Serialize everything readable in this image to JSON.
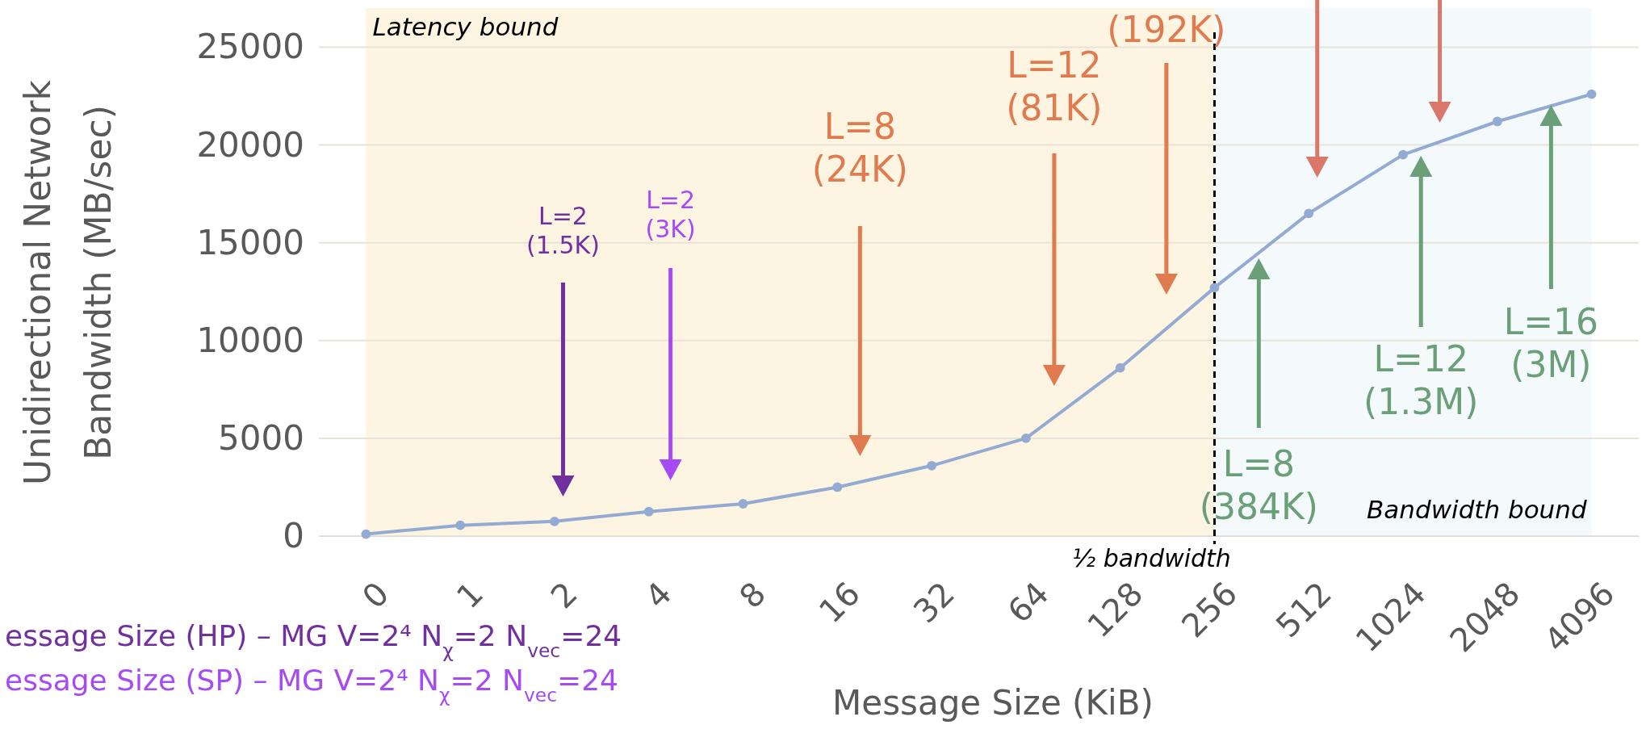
{
  "chart_data": {
    "type": "line",
    "xlabel": "Message Size (KiB)",
    "ylabel": "Unidirectional Network\nBandwidth (MB/sec)",
    "categories": [
      "0",
      "1",
      "2",
      "4",
      "8",
      "16",
      "32",
      "64",
      "128",
      "256",
      "512",
      "1024",
      "2048",
      "4096"
    ],
    "series": [
      {
        "color": "#93aad3",
        "values": [
          100,
          550,
          750,
          1250,
          1650,
          2500,
          3600,
          5000,
          8600,
          12700,
          16500,
          19500,
          21200,
          22600
        ]
      }
    ],
    "ylim": [
      0,
      27000
    ],
    "yticks": [
      0,
      5000,
      10000,
      15000,
      20000,
      25000
    ],
    "grid": "y",
    "marker": "circle",
    "line_style": "solid",
    "bands": [
      {
        "axis": "x",
        "from": "0",
        "to": "256",
        "label": "Latency bound",
        "color": "#fef4e2"
      },
      {
        "axis": "x",
        "from": "256",
        "to": "4096",
        "label": "Bandwidth bound",
        "color": "#f4f9fc"
      }
    ],
    "ref_lines": [
      {
        "axis": "x",
        "value": "256",
        "label": "½ bandwidth",
        "color": "#000000",
        "line_style": "dashed"
      }
    ],
    "annotations": [
      "L=2\n(1.5K)",
      "L=2\n(3K)",
      "L=8\n(24K)",
      "L=12\n(81K)",
      "(192K)",
      "L=8\n(384K)",
      "L=12\n(1.3M)",
      "L=16\n(3M)",
      "essage Size (HP) – MG V=2⁴ N$_{χ}$=2 N$_{vec}$=24",
      "essage Size (SP) – MG V=2⁴ N$_{χ}$=2 N$_{vec}$=24"
    ]
  }
}
